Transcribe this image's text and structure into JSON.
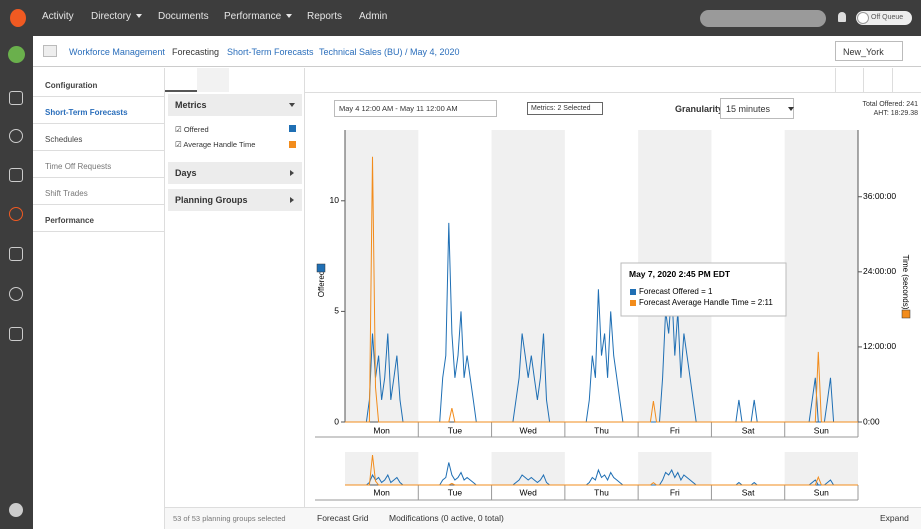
{
  "top_nav": {
    "items": [
      "Activity",
      "Directory",
      "Documents",
      "Performance",
      "Reports",
      "Admin"
    ],
    "status": "Off Queue"
  },
  "breadcrumb": [
    "Workforce Management",
    "Forecasting",
    "Short-Term Forecasts",
    "Technical Sales (BU) / May 4, 2020"
  ],
  "timezone": "New_York",
  "side_menu": [
    "Configuration",
    "Short-Term Forecasts",
    "Schedules",
    "Time Off Requests",
    "Shift Trades",
    "Performance"
  ],
  "filters": {
    "metrics_title": "Metrics",
    "metrics": [
      "Offered",
      "Average Handle Time"
    ],
    "days": "Days",
    "planning_groups": "Planning Groups"
  },
  "toolbar": {
    "date_range": "May 4 12:00 AM - May 11 12:00 AM",
    "metrics_selected": "Metrics: 2 Selected",
    "granularity_label": "Granularity",
    "granularity": "15 minutes",
    "total_offered": "Total Offered: 241",
    "aht": "AHT: 18:29.38"
  },
  "chart_data": {
    "type": "line",
    "ylabel": "Offered",
    "y2label": "Time (seconds)",
    "xlim": [
      0,
      168
    ],
    "xticks": [
      {
        "value": 12,
        "label": "Mon"
      },
      {
        "value": 36,
        "label": "Tue"
      },
      {
        "value": 60,
        "label": "Wed"
      },
      {
        "value": 84,
        "label": "Thu"
      },
      {
        "value": 108,
        "label": "Fri"
      },
      {
        "value": 132,
        "label": "Sat"
      },
      {
        "value": 156,
        "label": "Sun"
      }
    ],
    "ylim": [
      0,
      13.2
    ],
    "yticks": [
      0,
      5,
      10
    ],
    "y2lim": [
      0,
      168000
    ],
    "y2ticks": [
      {
        "value": 0,
        "label": "0:00"
      },
      {
        "value": 43200,
        "label": "12:00:00"
      },
      {
        "value": 86400,
        "label": "24:00:00"
      },
      {
        "value": 129600,
        "label": "36:00:00"
      }
    ],
    "series": [
      {
        "name": "Forecast Offered",
        "color": "#1f6fb4",
        "x": [
          7,
          8,
          9,
          10,
          11,
          12,
          13,
          14,
          15,
          16,
          17,
          18,
          19,
          31,
          32,
          33,
          34,
          35,
          36,
          37,
          38,
          39,
          40,
          41,
          42,
          43,
          55,
          56,
          57,
          58,
          59,
          60,
          61,
          62,
          63,
          64,
          65,
          66,
          67,
          79,
          80,
          81,
          82,
          83,
          84,
          85,
          86,
          87,
          88,
          89,
          90,
          91,
          103,
          104,
          105,
          106,
          107,
          108,
          109,
          110,
          111,
          112,
          113,
          114,
          115,
          127,
          128,
          129,
          130,
          131,
          132,
          133,
          134,
          135,
          136,
          137,
          138,
          139,
          151,
          152,
          153,
          154,
          155,
          156,
          157,
          158,
          159,
          160,
          161,
          162,
          163
        ],
        "values": [
          0,
          1,
          4,
          2,
          3,
          1,
          2,
          4,
          1,
          2,
          3,
          1,
          0,
          0,
          2,
          3,
          9,
          4,
          2,
          3,
          5,
          2,
          3,
          2,
          1,
          0,
          0,
          1,
          2,
          4,
          3,
          2,
          3,
          2,
          1,
          2,
          4,
          1,
          0,
          0,
          1,
          3,
          2,
          6,
          3,
          4,
          2,
          5,
          3,
          2,
          1,
          0,
          0,
          2,
          5,
          4,
          6,
          3,
          5,
          2,
          4,
          3,
          2,
          1,
          0,
          0,
          0,
          1,
          0,
          0,
          0,
          0,
          1,
          0,
          0,
          0,
          0,
          0,
          0,
          0,
          1,
          2,
          0,
          0,
          0,
          1,
          2,
          0,
          0,
          0,
          0
        ]
      },
      {
        "name": "Forecast Average Handle Time",
        "color": "#f28c1c",
        "axis": "y2",
        "x": [
          0,
          8,
          9,
          10,
          11,
          34,
          35,
          36,
          100,
          101,
          102,
          154,
          155,
          156,
          168
        ],
        "values": [
          0,
          0,
          152640,
          20000,
          0,
          0,
          8000,
          0,
          0,
          12000,
          0,
          0,
          40320,
          0,
          0
        ]
      }
    ],
    "tooltip": {
      "title": "May 7, 2020 2:45 PM EDT",
      "lines": [
        "Forecast Offered = 1",
        "Forecast Average Handle Time = 2:11"
      ]
    }
  },
  "footer": {
    "selection": "53 of 53 planning groups selected",
    "grid": "Forecast Grid",
    "modifications": "Modifications (0 active, 0 total)",
    "expand": "Expand"
  }
}
